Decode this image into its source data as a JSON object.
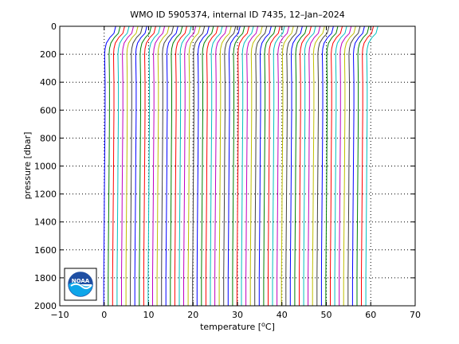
{
  "chart_data": {
    "type": "line",
    "title": "WMO ID 5905374, internal ID 7435, 12–Jan–2024",
    "xlabel_prefix": "temperature [",
    "xlabel_sup": "o",
    "xlabel_suffix": "C]",
    "ylabel": "pressure [dbar]",
    "xlim": [
      -10,
      70
    ],
    "ylim": [
      0,
      2000
    ],
    "y_reversed": true,
    "xticks": [
      -10,
      0,
      10,
      20,
      30,
      40,
      50,
      60,
      70
    ],
    "xtick_labels": [
      "−10",
      "0",
      "10",
      "20",
      "30",
      "40",
      "50",
      "60",
      "70"
    ],
    "yticks": [
      0,
      200,
      400,
      600,
      800,
      1000,
      1200,
      1400,
      1600,
      1800,
      2000
    ],
    "ytick_labels": [
      "0",
      "200",
      "400",
      "600",
      "800",
      "1000",
      "1200",
      "1400",
      "1600",
      "1800",
      "2000"
    ],
    "grid": "dotted",
    "profile_offset_step": 1,
    "profile_count": 60,
    "colors": [
      "#0000ff",
      "#008000",
      "#ff0000",
      "#00bfbf",
      "#bf00bf",
      "#bfbf00",
      "#404040"
    ],
    "pressure_levels": [
      0,
      50,
      80,
      120,
      160,
      200,
      300,
      400,
      600,
      800,
      1000,
      1200,
      1400,
      1600,
      1800,
      2000
    ],
    "base_profile_temperature": [
      2.6,
      2.2,
      1.3,
      0.5,
      0.2,
      0.1,
      0.15,
      0.2,
      0.2,
      0.15,
      0.1,
      0.05,
      0.0,
      -0.05,
      -0.1,
      -0.1
    ],
    "series_note_offsets": "profile i is plotted at base_profile_temperature + i * profile_offset_step"
  },
  "logo": {
    "name": "NOAA",
    "text": "NOAA"
  }
}
